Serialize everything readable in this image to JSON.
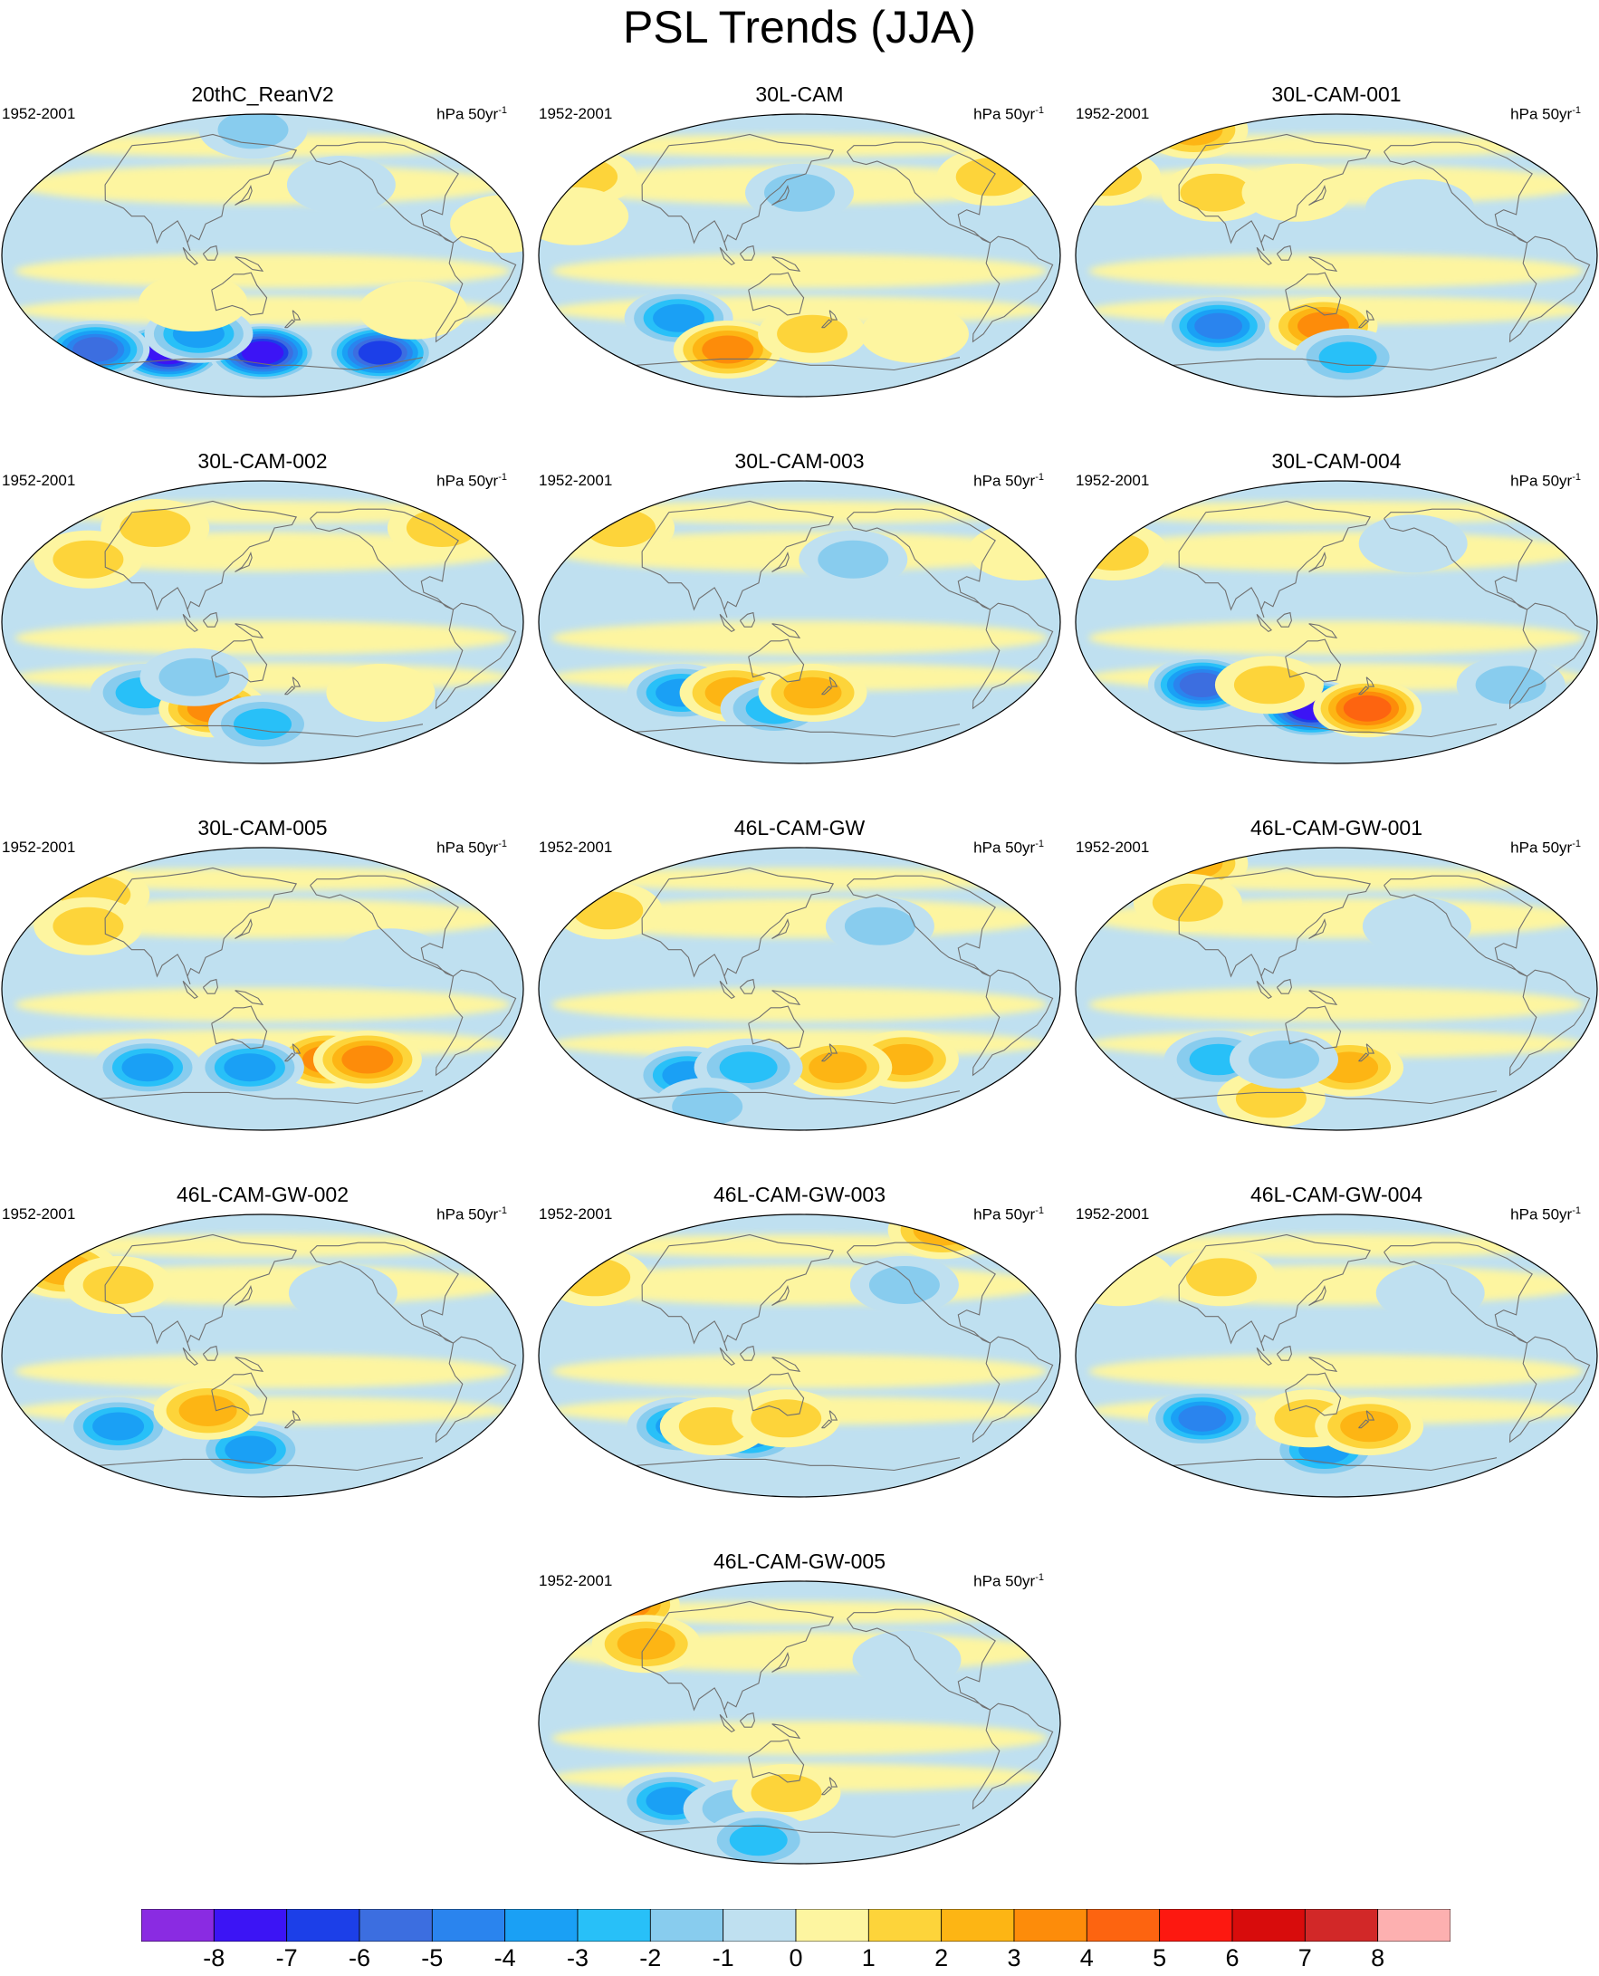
{
  "title": "PSL Trends (JJA)",
  "units_prefix": "hPa 50yr",
  "units_sup": "-1",
  "period": "1952-2001",
  "panels": [
    {
      "name": "20thC_ReanV2",
      "anomalies": [
        {
          "lon": 70,
          "lat": -62,
          "v": -8
        },
        {
          "lon": 150,
          "lat": -62,
          "v": -8
        },
        {
          "lon": 250,
          "lat": -62,
          "v": -7
        },
        {
          "lon": 10,
          "lat": -60,
          "v": -6
        },
        {
          "lon": 100,
          "lat": -50,
          "v": -4
        },
        {
          "lon": 140,
          "lat": 80,
          "v": -2
        },
        {
          "lon": -150,
          "lat": 45,
          "v": -1
        },
        {
          "lon": -40,
          "lat": 20,
          "v": 1
        },
        {
          "lon": 100,
          "lat": -30,
          "v": 1
        },
        {
          "lon": -100,
          "lat": -35,
          "v": 1
        }
      ]
    },
    {
      "name": "30L-CAM",
      "anomalies": [
        {
          "lon": 60,
          "lat": -40,
          "v": -4
        },
        {
          "lon": 90,
          "lat": -60,
          "v": 4
        },
        {
          "lon": -20,
          "lat": 50,
          "v": 2
        },
        {
          "lon": -10,
          "lat": 25,
          "v": 1
        },
        {
          "lon": -60,
          "lat": 50,
          "v": 2
        },
        {
          "lon": 160,
          "lat": -50,
          "v": 2
        },
        {
          "lon": 150,
          "lat": 40,
          "v": -2
        },
        {
          "lon": -120,
          "lat": -50,
          "v": 1
        }
      ]
    },
    {
      "name": "30L-CAM-001",
      "anomalies": [
        {
          "lon": 60,
          "lat": -45,
          "v": -5
        },
        {
          "lon": 140,
          "lat": -45,
          "v": 4
        },
        {
          "lon": 160,
          "lat": -65,
          "v": -3
        },
        {
          "lon": 0,
          "lat": 80,
          "v": 3
        },
        {
          "lon": -30,
          "lat": 50,
          "v": 2
        },
        {
          "lon": 60,
          "lat": 40,
          "v": 2
        },
        {
          "lon": 120,
          "lat": 40,
          "v": 1
        },
        {
          "lon": -150,
          "lat": 30,
          "v": -1
        }
      ]
    },
    {
      "name": "30L-CAM-002",
      "anomalies": [
        {
          "lon": 60,
          "lat": -45,
          "v": -3
        },
        {
          "lon": 110,
          "lat": -55,
          "v": 4
        },
        {
          "lon": 150,
          "lat": -65,
          "v": -3
        },
        {
          "lon": 100,
          "lat": -35,
          "v": -2
        },
        {
          "lon": -60,
          "lat": 60,
          "v": 2
        },
        {
          "lon": 60,
          "lat": 60,
          "v": 2
        },
        {
          "lon": 20,
          "lat": 40,
          "v": 2
        },
        {
          "lon": -120,
          "lat": -45,
          "v": 1
        }
      ]
    },
    {
      "name": "30L-CAM-003",
      "anomalies": [
        {
          "lon": 60,
          "lat": -45,
          "v": -4
        },
        {
          "lon": 100,
          "lat": -45,
          "v": 3
        },
        {
          "lon": 130,
          "lat": -55,
          "v": -3
        },
        {
          "lon": 160,
          "lat": -45,
          "v": 3
        },
        {
          "lon": 0,
          "lat": 60,
          "v": 2
        },
        {
          "lon": -40,
          "lat": 45,
          "v": 1
        },
        {
          "lon": -170,
          "lat": 40,
          "v": -2
        }
      ]
    },
    {
      "name": "30L-CAM-004",
      "anomalies": [
        {
          "lon": 50,
          "lat": -40,
          "v": -6
        },
        {
          "lon": 130,
          "lat": -55,
          "v": -8
        },
        {
          "lon": 175,
          "lat": -55,
          "v": 5
        },
        {
          "lon": 100,
          "lat": -40,
          "v": 2
        },
        {
          "lon": -80,
          "lat": -40,
          "v": -2
        },
        {
          "lon": -20,
          "lat": 45,
          "v": 2
        },
        {
          "lon": -150,
          "lat": 50,
          "v": -1
        }
      ]
    },
    {
      "name": "30L-CAM-005",
      "anomalies": [
        {
          "lon": -160,
          "lat": -45,
          "v": 4
        },
        {
          "lon": 60,
          "lat": -50,
          "v": -4
        },
        {
          "lon": 140,
          "lat": -50,
          "v": -4
        },
        {
          "lon": 230,
          "lat": -45,
          "v": 4
        },
        {
          "lon": 10,
          "lat": 60,
          "v": 2
        },
        {
          "lon": 20,
          "lat": 40,
          "v": 2
        },
        {
          "lon": -120,
          "lat": 20,
          "v": -1
        }
      ]
    },
    {
      "name": "46L-CAM-GW",
      "anomalies": [
        {
          "lon": 60,
          "lat": -55,
          "v": -4
        },
        {
          "lon": -130,
          "lat": -45,
          "v": 3
        },
        {
          "lon": 180,
          "lat": -50,
          "v": 3
        },
        {
          "lon": 110,
          "lat": -50,
          "v": -3
        },
        {
          "lon": 0,
          "lat": 50,
          "v": 2
        },
        {
          "lon": -150,
          "lat": 40,
          "v": -2
        },
        {
          "lon": 60,
          "lat": -75,
          "v": -2
        }
      ]
    },
    {
      "name": "46L-CAM-GW-001",
      "anomalies": [
        {
          "lon": 60,
          "lat": -45,
          "v": -3
        },
        {
          "lon": 160,
          "lat": -50,
          "v": 3
        },
        {
          "lon": 0,
          "lat": 80,
          "v": 3
        },
        {
          "lon": 30,
          "lat": 55,
          "v": 2
        },
        {
          "lon": 90,
          "lat": -70,
          "v": 2
        },
        {
          "lon": -150,
          "lat": 40,
          "v": -1
        },
        {
          "lon": 110,
          "lat": -45,
          "v": -2
        }
      ]
    },
    {
      "name": "46L-CAM-GW-002",
      "anomalies": [
        {
          "lon": 40,
          "lat": -45,
          "v": -4
        },
        {
          "lon": 140,
          "lat": -60,
          "v": -4
        },
        {
          "lon": -10,
          "lat": 55,
          "v": 3
        },
        {
          "lon": 40,
          "lat": 45,
          "v": 2
        },
        {
          "lon": 110,
          "lat": -35,
          "v": 3
        },
        {
          "lon": -150,
          "lat": 40,
          "v": -1
        }
      ]
    },
    {
      "name": "46L-CAM-GW-003",
      "anomalies": [
        {
          "lon": 60,
          "lat": -45,
          "v": -4
        },
        {
          "lon": 110,
          "lat": -50,
          "v": -4
        },
        {
          "lon": 85,
          "lat": -45,
          "v": 2
        },
        {
          "lon": 140,
          "lat": -40,
          "v": 2
        },
        {
          "lon": -10,
          "lat": 50,
          "v": 2
        },
        {
          "lon": -60,
          "lat": 80,
          "v": 3
        },
        {
          "lon": -130,
          "lat": 45,
          "v": -2
        }
      ]
    },
    {
      "name": "46L-CAM-GW-004",
      "anomalies": [
        {
          "lon": 50,
          "lat": -40,
          "v": -5
        },
        {
          "lon": 140,
          "lat": -60,
          "v": -4
        },
        {
          "lon": 130,
          "lat": -40,
          "v": 2
        },
        {
          "lon": 175,
          "lat": -45,
          "v": 3
        },
        {
          "lon": -20,
          "lat": 50,
          "v": 1
        },
        {
          "lon": 60,
          "lat": 50,
          "v": 2
        },
        {
          "lon": -140,
          "lat": 40,
          "v": -1
        }
      ]
    },
    {
      "name": "46L-CAM-GW-005",
      "anomalies": [
        {
          "lon": 50,
          "lat": -50,
          "v": -4
        },
        {
          "lon": 100,
          "lat": -55,
          "v": -2
        },
        {
          "lon": 140,
          "lat": -45,
          "v": 2
        },
        {
          "lon": -20,
          "lat": 75,
          "v": 4
        },
        {
          "lon": 30,
          "lat": 50,
          "v": 3
        },
        {
          "lon": -130,
          "lat": 40,
          "v": -1
        },
        {
          "lon": 110,
          "lat": -75,
          "v": -3
        }
      ]
    }
  ],
  "colorbar": {
    "labels": [
      "-8",
      "-7",
      "-6",
      "-5",
      "-4",
      "-3",
      "-2",
      "-1",
      "0",
      "1",
      "2",
      "3",
      "4",
      "5",
      "6",
      "7",
      "8"
    ],
    "colors": [
      "#8a2be2",
      "#3c14f5",
      "#1c3fe8",
      "#3c6ee0",
      "#2a84ee",
      "#1aa0f5",
      "#28c0f8",
      "#88ccee",
      "#bfe0f0",
      "#fdf5a0",
      "#fdd43a",
      "#fdb514",
      "#fd8c0a",
      "#fd6410",
      "#fd1810",
      "#d80c0c",
      "#d22828",
      "#fdb0b0"
    ]
  }
}
